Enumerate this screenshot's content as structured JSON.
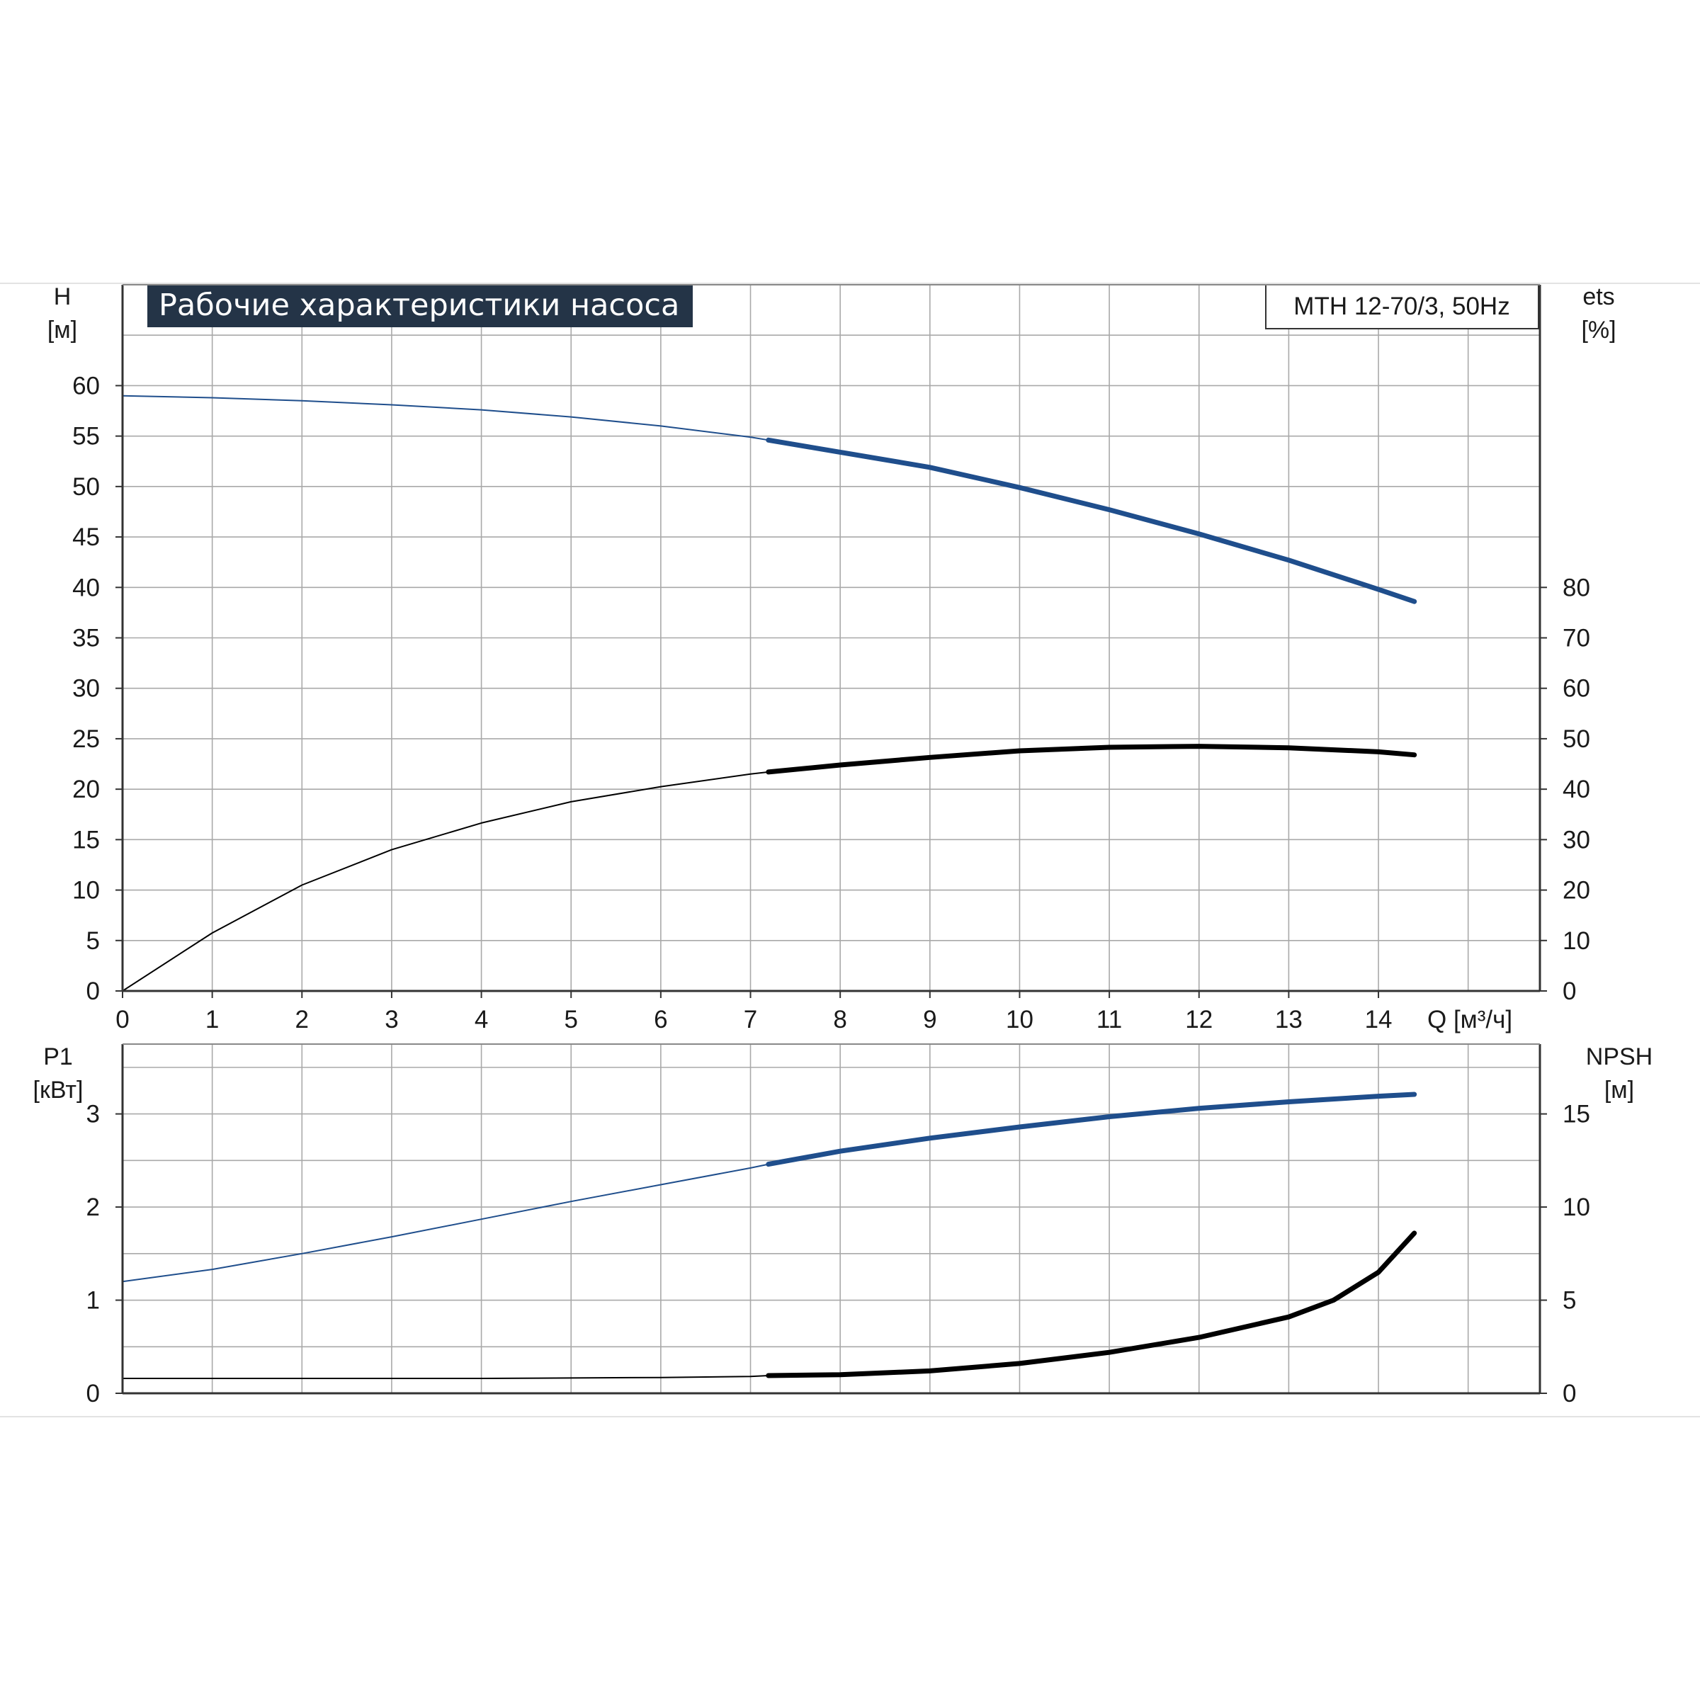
{
  "chart_data": [
    {
      "type": "line",
      "title": "Рабочие характеристики насоса",
      "model_label": "MTH 12-70/3, 50Hz",
      "xlabel": "Q [м³/ч]",
      "xticks": [
        "0",
        "1",
        "2",
        "3",
        "4",
        "5",
        "6",
        "7",
        "8",
        "9",
        "10",
        "11",
        "12",
        "13",
        "14"
      ],
      "xlim": [
        0,
        15.8
      ],
      "left_axis": {
        "name": "H",
        "unit": "[м]",
        "ylim": [
          0,
          70
        ],
        "ticks": [
          0,
          5,
          10,
          15,
          20,
          25,
          30,
          35,
          40,
          45,
          50,
          55,
          60
        ]
      },
      "right_axis": {
        "name": "ets",
        "unit": "[%]",
        "ylim": [
          0,
          140
        ],
        "ticks": [
          0,
          10,
          20,
          30,
          40,
          50,
          60,
          70,
          80
        ]
      },
      "grid": true,
      "series": [
        {
          "axis": "left",
          "color": "#1f4e8c",
          "highlight_from_x": 7.2,
          "x": [
            0,
            1,
            2,
            3,
            4,
            5,
            6,
            7,
            7.2,
            8,
            9,
            10,
            11,
            12,
            13,
            14,
            14.4
          ],
          "y": [
            59.0,
            58.8,
            58.5,
            58.1,
            57.6,
            56.9,
            56.0,
            54.9,
            54.6,
            53.4,
            51.9,
            49.9,
            47.7,
            45.3,
            42.7,
            39.8,
            38.6
          ]
        },
        {
          "axis": "right",
          "color": "#000000",
          "highlight_from_x": 7.2,
          "x": [
            0,
            1,
            2,
            3,
            4,
            5,
            6,
            7,
            7.2,
            8,
            9,
            10,
            11,
            12,
            13,
            14,
            14.4
          ],
          "y": [
            0,
            11.5,
            21.0,
            28.0,
            33.3,
            37.5,
            40.5,
            43.0,
            43.4,
            44.8,
            46.3,
            47.6,
            48.3,
            48.5,
            48.2,
            47.4,
            46.8
          ]
        }
      ]
    },
    {
      "type": "line",
      "xlim": [
        0,
        15.8
      ],
      "left_axis": {
        "name": "P1",
        "unit": "[кВт]",
        "ylim": [
          0,
          3.75
        ],
        "ticks": [
          0,
          1,
          2,
          3
        ]
      },
      "right_axis": {
        "name": "NPSH",
        "unit": "[м]",
        "ylim": [
          0,
          18.75
        ],
        "ticks": [
          0,
          5,
          10,
          15
        ]
      },
      "grid": true,
      "series": [
        {
          "axis": "left",
          "color": "#1f4e8c",
          "highlight_from_x": 7.2,
          "x": [
            0,
            1,
            2,
            3,
            4,
            5,
            6,
            7,
            7.2,
            8,
            9,
            10,
            11,
            12,
            13,
            14,
            14.4
          ],
          "y": [
            1.2,
            1.33,
            1.5,
            1.68,
            1.87,
            2.06,
            2.24,
            2.42,
            2.46,
            2.6,
            2.74,
            2.86,
            2.97,
            3.06,
            3.13,
            3.19,
            3.21
          ]
        },
        {
          "axis": "right",
          "color": "#000000",
          "highlight_from_x": 7.2,
          "x": [
            0,
            2,
            4,
            6,
            7,
            7.2,
            8,
            9,
            10,
            11,
            12,
            13,
            13.5,
            14,
            14.4
          ],
          "y": [
            0.8,
            0.8,
            0.8,
            0.85,
            0.9,
            0.95,
            1.0,
            1.2,
            1.6,
            2.2,
            3.0,
            4.1,
            5.0,
            6.5,
            8.6
          ]
        }
      ]
    }
  ]
}
